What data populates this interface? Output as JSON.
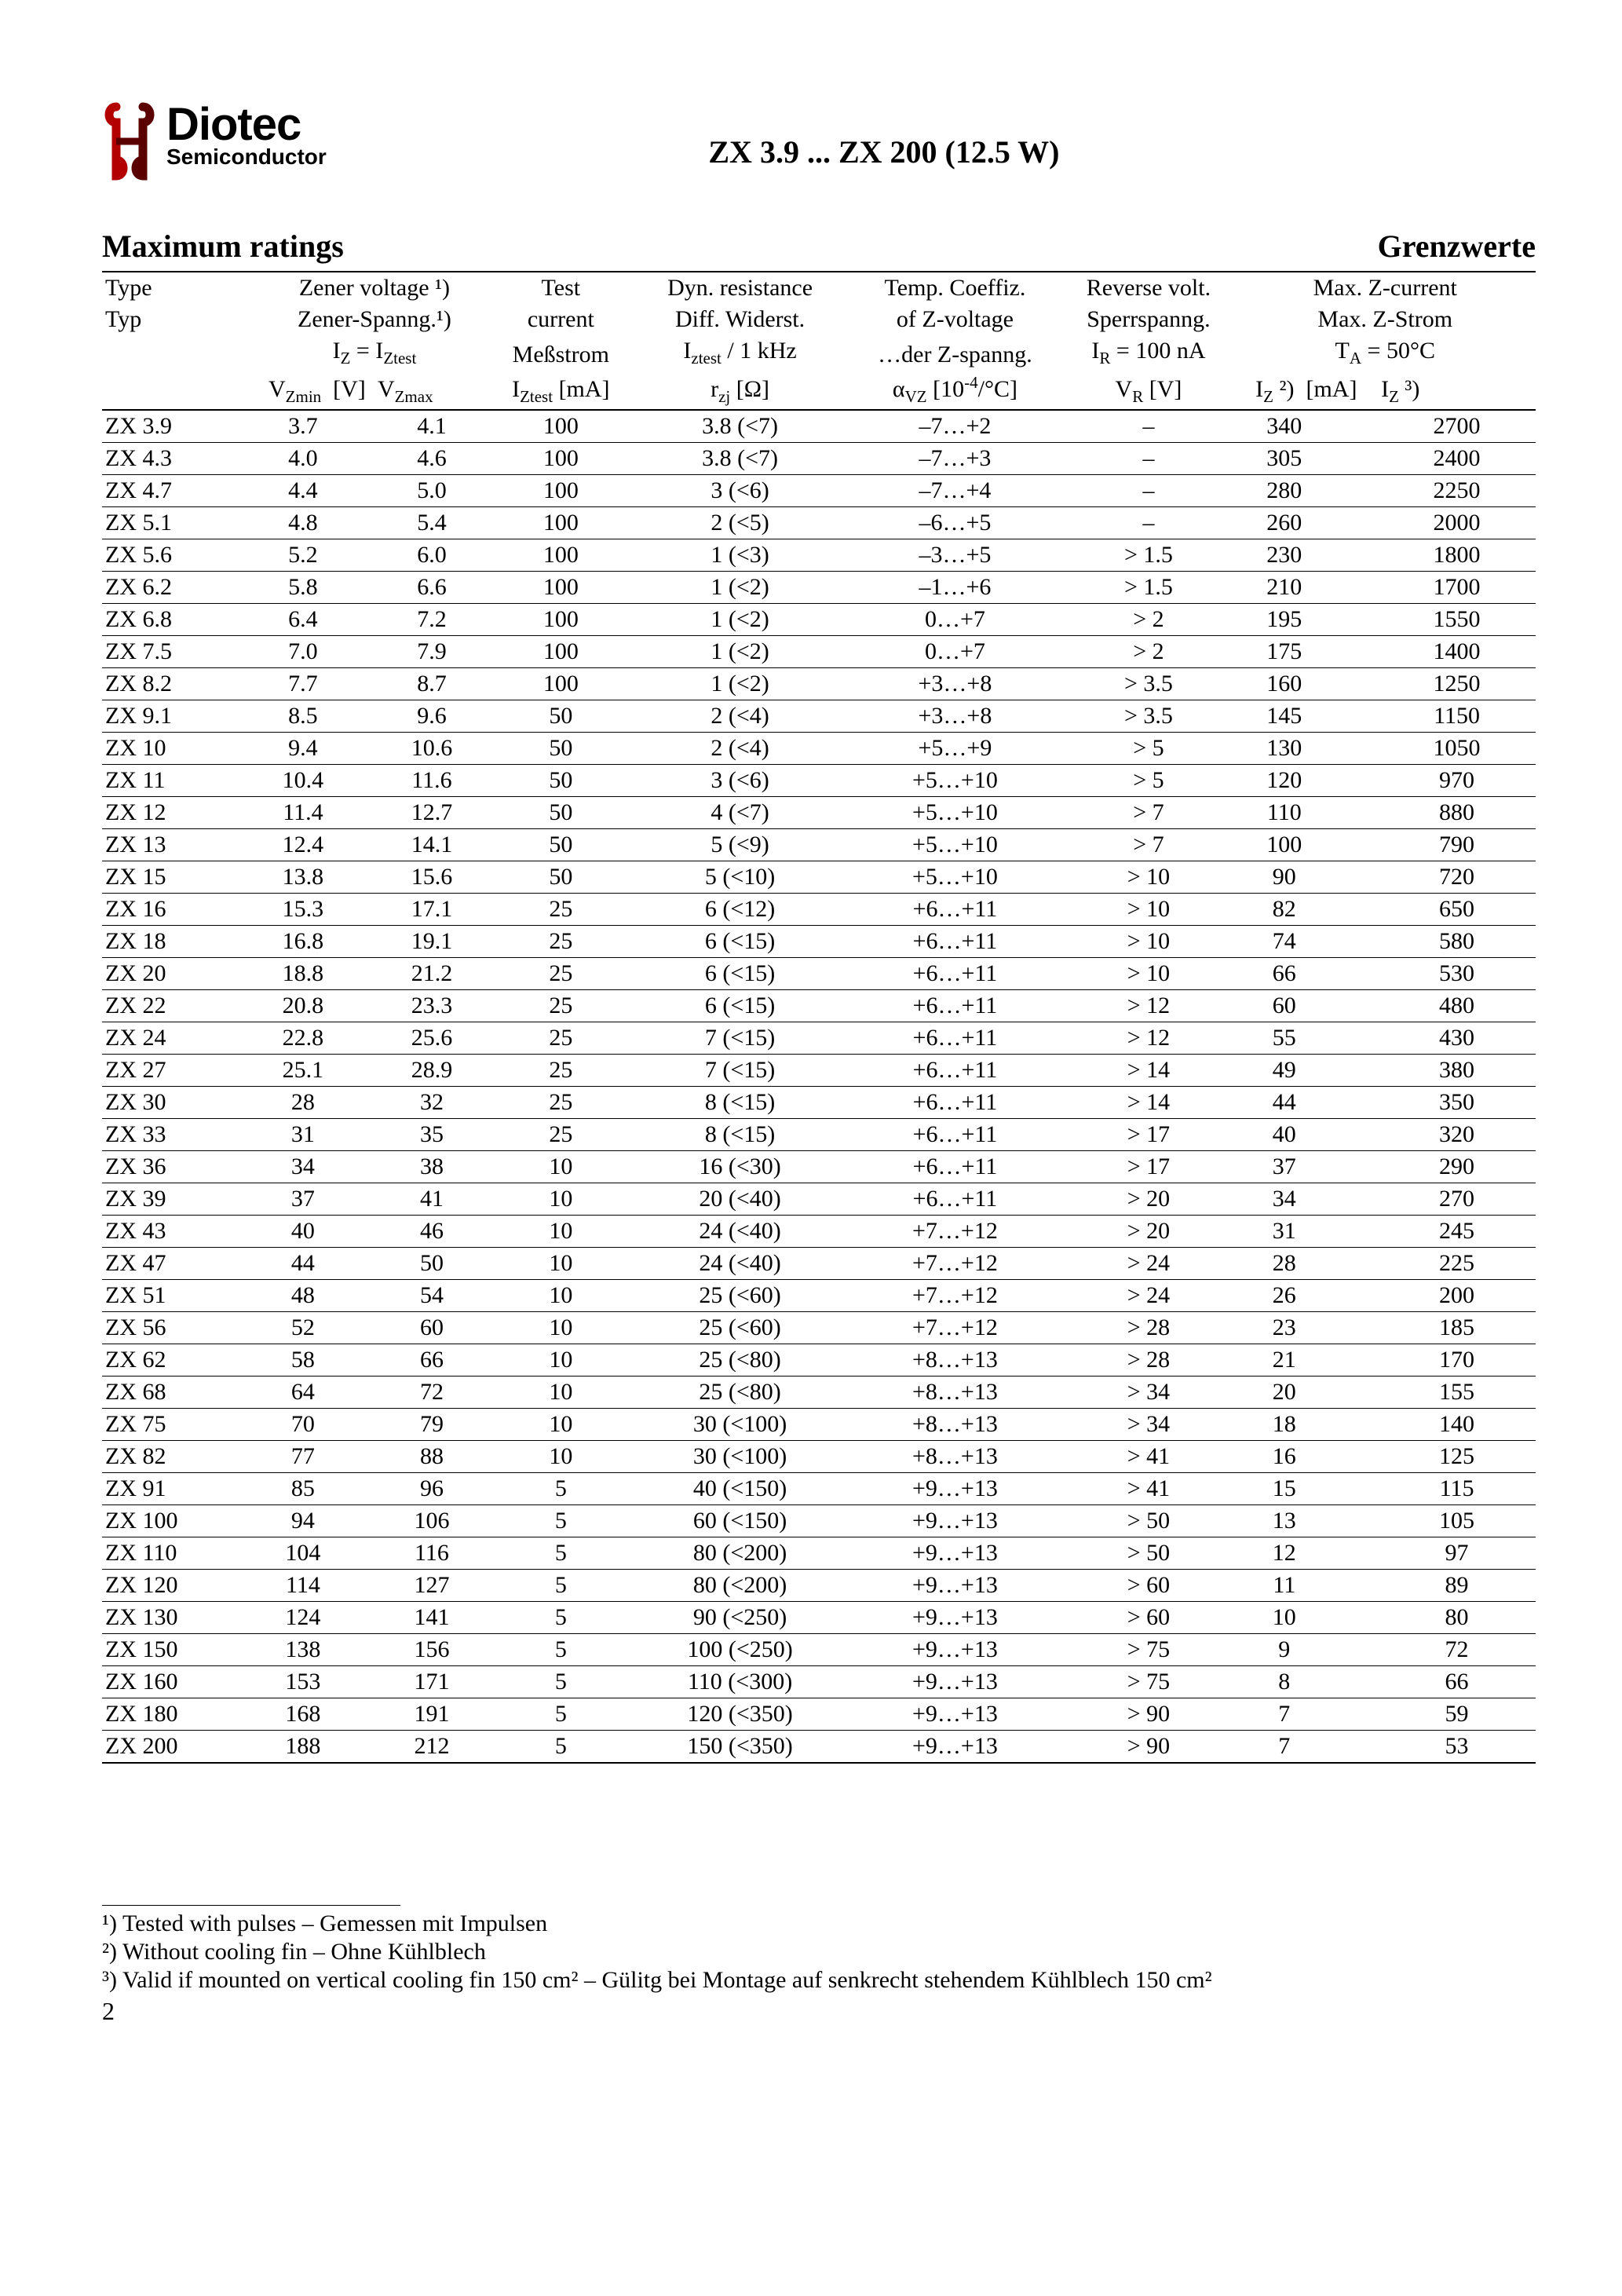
{
  "header": {
    "logo_word": "Diotec",
    "logo_sub": "Semiconductor",
    "doc_title": "ZX 3.9 ... ZX 200 (12.5 W)"
  },
  "section": {
    "left": "Maximum ratings",
    "right": "Grenzwerte"
  },
  "columns": {
    "type_en": "Type",
    "type_de": "Typ",
    "zv1": "Zener voltage ¹)",
    "zv2": "Zener-Spanng.¹)",
    "zv3_html": "I<sub>Z</sub> = I<sub>Ztest</sub>",
    "zv4a_html": "V<sub>Zmin</sub>",
    "zv4b": "[V]",
    "zv4c_html": "V<sub>Zmax</sub>",
    "test1": "Test",
    "test2": "current",
    "test3": "Meßstrom",
    "test4_html": "I<sub>Ztest</sub> [mA]",
    "dyn1": "Dyn. resistance",
    "dyn2": "Diff. Widerst.",
    "dyn3_html": "I<sub>ztest</sub> / 1 kHz",
    "dyn4_html": "r<sub>zj</sub> [Ω]",
    "tc1": "Temp. Coeffiz.",
    "tc2": "of Z-voltage",
    "tc3": "…der Z-spanng.",
    "tc4_html": "α<sub>VZ</sub> [10<sup>-4</sup>/°C]",
    "rv1": "Reverse volt.",
    "rv2": "Sperrspanng.",
    "rv3_html": "I<sub>R</sub> = 100 nA",
    "rv4_html": "V<sub>R</sub> [V]",
    "mz1": "Max. Z-current",
    "mz2": "Max. Z-Strom",
    "mz3_html": "T<sub>A</sub> = 50°C",
    "mz4a_html": "I<sub>Z</sub> ²)",
    "mz4b": "[mA]",
    "mz4c_html": "I<sub>Z</sub> ³)"
  },
  "col_widths_pct": [
    11,
    8,
    8,
    10,
    15,
    15,
    12,
    10,
    11
  ],
  "rows": [
    [
      "ZX 3.9",
      "3.7",
      "4.1",
      "100",
      "3.8 (<7)",
      "–7…+2",
      "–",
      "340",
      "2700"
    ],
    [
      "ZX 4.3",
      "4.0",
      "4.6",
      "100",
      "3.8 (<7)",
      "–7…+3",
      "–",
      "305",
      "2400"
    ],
    [
      "ZX 4.7",
      "4.4",
      "5.0",
      "100",
      "3 (<6)",
      "–7…+4",
      "–",
      "280",
      "2250"
    ],
    [
      "ZX 5.1",
      "4.8",
      "5.4",
      "100",
      "2 (<5)",
      "–6…+5",
      "–",
      "260",
      "2000"
    ],
    [
      "ZX 5.6",
      "5.2",
      "6.0",
      "100",
      "1 (<3)",
      "–3…+5",
      "> 1.5",
      "230",
      "1800"
    ],
    [
      "ZX 6.2",
      "5.8",
      "6.6",
      "100",
      "1 (<2)",
      "–1…+6",
      "> 1.5",
      "210",
      "1700"
    ],
    [
      "ZX 6.8",
      "6.4",
      "7.2",
      "100",
      "1 (<2)",
      "0…+7",
      "> 2",
      "195",
      "1550"
    ],
    [
      "ZX 7.5",
      "7.0",
      "7.9",
      "100",
      "1 (<2)",
      "0…+7",
      "> 2",
      "175",
      "1400"
    ],
    [
      "ZX 8.2",
      "7.7",
      "8.7",
      "100",
      "1 (<2)",
      "+3…+8",
      "> 3.5",
      "160",
      "1250"
    ],
    [
      "ZX 9.1",
      "8.5",
      "9.6",
      "50",
      "2 (<4)",
      "+3…+8",
      "> 3.5",
      "145",
      "1150"
    ],
    [
      "ZX 10",
      "9.4",
      "10.6",
      "50",
      "2 (<4)",
      "+5…+9",
      "> 5",
      "130",
      "1050"
    ],
    [
      "ZX 11",
      "10.4",
      "11.6",
      "50",
      "3 (<6)",
      "+5…+10",
      "> 5",
      "120",
      "970"
    ],
    [
      "ZX 12",
      "11.4",
      "12.7",
      "50",
      "4 (<7)",
      "+5…+10",
      "> 7",
      "110",
      "880"
    ],
    [
      "ZX 13",
      "12.4",
      "14.1",
      "50",
      "5 (<9)",
      "+5…+10",
      "> 7",
      "100",
      "790"
    ],
    [
      "ZX 15",
      "13.8",
      "15.6",
      "50",
      "5 (<10)",
      "+5…+10",
      "> 10",
      "90",
      "720"
    ],
    [
      "ZX 16",
      "15.3",
      "17.1",
      "25",
      "6 (<12)",
      "+6…+11",
      "> 10",
      "82",
      "650"
    ],
    [
      "ZX 18",
      "16.8",
      "19.1",
      "25",
      "6 (<15)",
      "+6…+11",
      "> 10",
      "74",
      "580"
    ],
    [
      "ZX 20",
      "18.8",
      "21.2",
      "25",
      "6 (<15)",
      "+6…+11",
      "> 10",
      "66",
      "530"
    ],
    [
      "ZX 22",
      "20.8",
      "23.3",
      "25",
      "6 (<15)",
      "+6…+11",
      "> 12",
      "60",
      "480"
    ],
    [
      "ZX 24",
      "22.8",
      "25.6",
      "25",
      "7 (<15)",
      "+6…+11",
      "> 12",
      "55",
      "430"
    ],
    [
      "ZX 27",
      "25.1",
      "28.9",
      "25",
      "7 (<15)",
      "+6…+11",
      "> 14",
      "49",
      "380"
    ],
    [
      "ZX 30",
      "28",
      "32",
      "25",
      "8 (<15)",
      "+6…+11",
      "> 14",
      "44",
      "350"
    ],
    [
      "ZX 33",
      "31",
      "35",
      "25",
      "8 (<15)",
      "+6…+11",
      "> 17",
      "40",
      "320"
    ],
    [
      "ZX 36",
      "34",
      "38",
      "10",
      "16 (<30)",
      "+6…+11",
      "> 17",
      "37",
      "290"
    ],
    [
      "ZX 39",
      "37",
      "41",
      "10",
      "20 (<40)",
      "+6…+11",
      "> 20",
      "34",
      "270"
    ],
    [
      "ZX 43",
      "40",
      "46",
      "10",
      "24 (<40)",
      "+7…+12",
      "> 20",
      "31",
      "245"
    ],
    [
      "ZX 47",
      "44",
      "50",
      "10",
      "24 (<40)",
      "+7…+12",
      "> 24",
      "28",
      "225"
    ],
    [
      "ZX 51",
      "48",
      "54",
      "10",
      "25 (<60)",
      "+7…+12",
      "> 24",
      "26",
      "200"
    ],
    [
      "ZX 56",
      "52",
      "60",
      "10",
      "25 (<60)",
      "+7…+12",
      "> 28",
      "23",
      "185"
    ],
    [
      "ZX 62",
      "58",
      "66",
      "10",
      "25 (<80)",
      "+8…+13",
      "> 28",
      "21",
      "170"
    ],
    [
      "ZX 68",
      "64",
      "72",
      "10",
      "25 (<80)",
      "+8…+13",
      "> 34",
      "20",
      "155"
    ],
    [
      "ZX 75",
      "70",
      "79",
      "10",
      "30 (<100)",
      "+8…+13",
      "> 34",
      "18",
      "140"
    ],
    [
      "ZX 82",
      "77",
      "88",
      "10",
      "30 (<100)",
      "+8…+13",
      "> 41",
      "16",
      "125"
    ],
    [
      "ZX 91",
      "85",
      "96",
      "5",
      "40 (<150)",
      "+9…+13",
      "> 41",
      "15",
      "115"
    ],
    [
      "ZX 100",
      "94",
      "106",
      "5",
      "60 (<150)",
      "+9…+13",
      "> 50",
      "13",
      "105"
    ],
    [
      "ZX 110",
      "104",
      "116",
      "5",
      "80 (<200)",
      "+9…+13",
      "> 50",
      "12",
      "97"
    ],
    [
      "ZX 120",
      "114",
      "127",
      "5",
      "80 (<200)",
      "+9…+13",
      "> 60",
      "11",
      "89"
    ],
    [
      "ZX 130",
      "124",
      "141",
      "5",
      "90 (<250)",
      "+9…+13",
      "> 60",
      "10",
      "80"
    ],
    [
      "ZX 150",
      "138",
      "156",
      "5",
      "100 (<250)",
      "+9…+13",
      "> 75",
      "9",
      "72"
    ],
    [
      "ZX 160",
      "153",
      "171",
      "5",
      "110 (<300)",
      "+9…+13",
      "> 75",
      "8",
      "66"
    ],
    [
      "ZX 180",
      "168",
      "191",
      "5",
      "120 (<350)",
      "+9…+13",
      "> 90",
      "7",
      "59"
    ],
    [
      "ZX 200",
      "188",
      "212",
      "5",
      "150 (<350)",
      "+9…+13",
      "> 90",
      "7",
      "53"
    ]
  ],
  "footnotes": {
    "f1": "¹)   Tested with pulses – Gemessen mit Impulsen",
    "f2": "²)   Without cooling fin – Ohne Kühlblech",
    "f3": "³)   Valid if mounted on vertical cooling fin 150 cm² – Gülitg bei Montage auf  senkrecht stehendem Kühlblech 150 cm²"
  },
  "page_number": "2",
  "logo_color_inner": "#b30000",
  "logo_color_outer": "#5a0000"
}
